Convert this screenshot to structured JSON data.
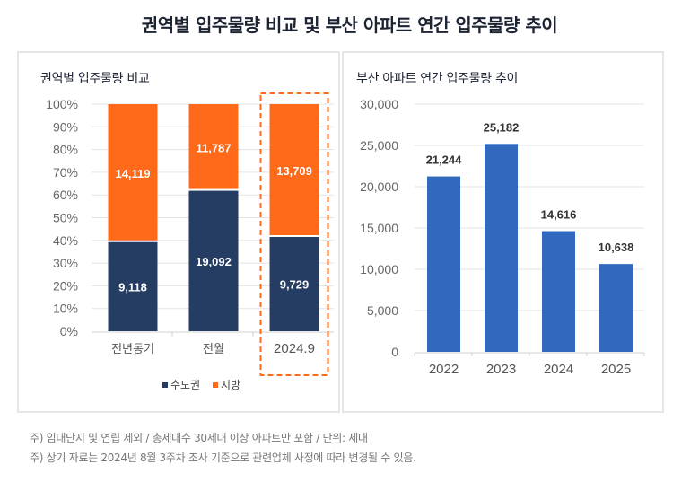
{
  "title": "권역별 입주물량 비교 및 부산 아파트 연간 입주물량 추이",
  "colors": {
    "capital": "#263d63",
    "local": "#ff6a1a",
    "busan": "#3169be",
    "grid": "#e3e3e3",
    "highlight_border": "#ff6a1a"
  },
  "chart_data": [
    {
      "type": "bar",
      "stacked": "percent",
      "title": "권역별 입주물량 비교",
      "categories": [
        "전년동기",
        "전월",
        "2024.9"
      ],
      "highlighted_category": "2024.9",
      "series": [
        {
          "name": "수도권",
          "values": [
            9118,
            19092,
            9729
          ],
          "labels": [
            "9,118",
            "19,092",
            "9,729"
          ]
        },
        {
          "name": "지방",
          "values": [
            14119,
            11787,
            13709
          ],
          "labels": [
            "14,119",
            "11,787",
            "13,709"
          ]
        }
      ],
      "yticks": [
        "0%",
        "10%",
        "20%",
        "30%",
        "40%",
        "50%",
        "60%",
        "70%",
        "80%",
        "90%",
        "100%"
      ],
      "ylim": [
        0,
        100
      ],
      "xlabel": "",
      "ylabel": "",
      "grid": true,
      "legend": "bottom"
    },
    {
      "type": "bar",
      "title": "부산 아파트 연간 입주물량 추이",
      "categories": [
        "2022",
        "2023",
        "2024",
        "2025"
      ],
      "values": [
        21244,
        25182,
        14616,
        10638
      ],
      "labels": [
        "21,244",
        "25,182",
        "14,616",
        "10,638"
      ],
      "yticks": [
        "0",
        "5,000",
        "10,000",
        "15,000",
        "20,000",
        "25,000",
        "30,000"
      ],
      "ylim": [
        0,
        30000
      ],
      "xlabel": "",
      "ylabel": "",
      "grid": true,
      "legend": "none"
    }
  ],
  "footnotes": [
    "주) 임대단지 및 연립 제외 / 총세대수 30세대 이상 아파트만 포함 / 단위: 세대",
    "주) 상기 자료는 2024년 8월 3주차 조사 기준으로 관련업체 사정에 따라 변경될 수 있음."
  ]
}
